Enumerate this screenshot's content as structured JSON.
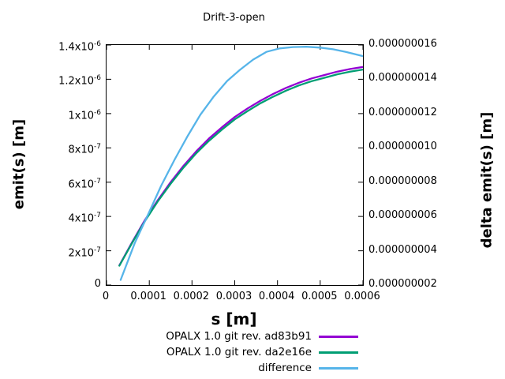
{
  "chart_data": {
    "type": "line",
    "title": "Drift-3-open",
    "xlabel": "s [m]",
    "ylabel": "emit(s) [m]",
    "y2label": "delta emit(s) [m]",
    "grid": false,
    "legend_position": "bottom-center",
    "x_range": [
      0,
      0.0006
    ],
    "y_range": [
      0,
      1.4e-06
    ],
    "y2_range": [
      2e-09,
      1.6e-08
    ],
    "x_ticks": [
      {
        "v": 0,
        "text": "0"
      },
      {
        "v": 0.0001,
        "text": "0.0001"
      },
      {
        "v": 0.0002,
        "text": "0.0002"
      },
      {
        "v": 0.0003,
        "text": "0.0003"
      },
      {
        "v": 0.0004,
        "text": "0.0004"
      },
      {
        "v": 0.0005,
        "text": "0.0005"
      },
      {
        "v": 0.0006,
        "text": "0.0006"
      }
    ],
    "y_ticks": [
      {
        "v": 0,
        "text": "0",
        "sup": ""
      },
      {
        "v": 2e-07,
        "text": "2x10",
        "sup": "-7"
      },
      {
        "v": 4e-07,
        "text": "4x10",
        "sup": "-7"
      },
      {
        "v": 6e-07,
        "text": "6x10",
        "sup": "-7"
      },
      {
        "v": 8e-07,
        "text": "8x10",
        "sup": "-7"
      },
      {
        "v": 1e-06,
        "text": "1x10",
        "sup": "-6"
      },
      {
        "v": 1.2e-06,
        "text": "1.2x10",
        "sup": "-6"
      },
      {
        "v": 1.4e-06,
        "text": "1.4x10",
        "sup": "-6"
      }
    ],
    "y2_ticks": [
      {
        "v": 2e-09,
        "text": "0.000000002"
      },
      {
        "v": 4e-09,
        "text": "0.000000004"
      },
      {
        "v": 6e-09,
        "text": "0.000000006"
      },
      {
        "v": 8e-09,
        "text": "0.000000008"
      },
      {
        "v": 1e-08,
        "text": "0.000000010"
      },
      {
        "v": 1.2e-08,
        "text": "0.000000012"
      },
      {
        "v": 1.4e-08,
        "text": "0.000000014"
      },
      {
        "v": 1.6e-08,
        "text": "0.000000016"
      }
    ],
    "series": [
      {
        "name": "OPALX 1.0 git rev. ad83b91",
        "color": "#9400d3",
        "axis": "y1",
        "x": [
          3e-05,
          6e-05,
          9e-05,
          0.00012,
          0.00015,
          0.00018,
          0.00021,
          0.00024,
          0.00027,
          0.0003,
          0.00033,
          0.00036,
          0.00039,
          0.00042,
          0.00045,
          0.00048,
          0.00051,
          0.00054,
          0.00057,
          0.0006
        ],
        "y": [
          1.15e-07,
          2.5e-07,
          3.8e-07,
          4.95e-07,
          6e-07,
          6.95e-07,
          7.8e-07,
          8.55e-07,
          9.2e-07,
          9.8e-07,
          1.03e-06,
          1.075e-06,
          1.115e-06,
          1.15e-06,
          1.18e-06,
          1.205e-06,
          1.225e-06,
          1.245e-06,
          1.26e-06,
          1.272e-06
        ]
      },
      {
        "name": "OPALX 1.0 git rev. da2e16e",
        "color": "#009e73",
        "axis": "y1",
        "x": [
          3e-05,
          6e-05,
          9e-05,
          0.00012,
          0.00015,
          0.00018,
          0.00021,
          0.00024,
          0.00027,
          0.0003,
          0.00033,
          0.00036,
          0.00039,
          0.00042,
          0.00045,
          0.00048,
          0.00051,
          0.00054,
          0.00057,
          0.0006
        ],
        "y": [
          1.13e-07,
          2.46e-07,
          3.74e-07,
          4.88e-07,
          5.91e-07,
          6.85e-07,
          7.69e-07,
          8.42e-07,
          9.07e-07,
          9.66e-07,
          1.015e-06,
          1.06e-06,
          1.099e-06,
          1.134e-06,
          1.164e-06,
          1.189e-06,
          1.209e-06,
          1.229e-06,
          1.245e-06,
          1.257e-06
        ]
      },
      {
        "name": "difference",
        "color": "#56b4e9",
        "axis": "y2",
        "x": [
          3.3e-05,
          6.6e-05,
          9.7e-05,
          0.000128,
          0.000159,
          0.00019,
          0.00022,
          0.000251,
          0.000282,
          0.000312,
          0.000343,
          0.000374,
          0.000405,
          0.000436,
          0.000467,
          0.0005,
          0.00053,
          0.00056,
          0.0006
        ],
        "y": [
          2.3e-09,
          4.45e-09,
          6.1e-09,
          7.8e-09,
          9.3e-09,
          1.07e-08,
          1.195e-08,
          1.3e-08,
          1.39e-08,
          1.455e-08,
          1.515e-08,
          1.56e-08,
          1.58e-08,
          1.588e-08,
          1.59e-08,
          1.585e-08,
          1.575e-08,
          1.56e-08,
          1.535e-08
        ]
      }
    ]
  }
}
